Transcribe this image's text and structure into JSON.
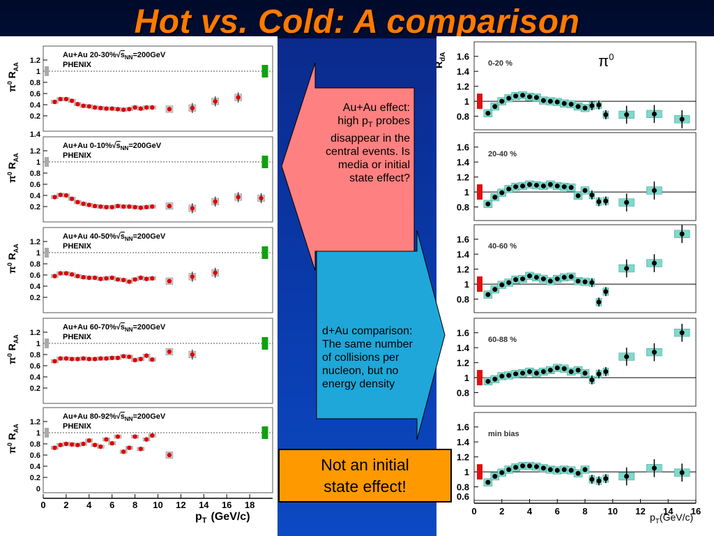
{
  "slide_title": "Hot vs. Cold: A comparison",
  "left": {
    "ylabel_a": "π",
    "ylabel_b": "0",
    "ylabel_c": "R",
    "ylabel_d": "AA",
    "xlabel_a": "p",
    "xlabel_b": "T",
    "xlabel_c": "(GeV/c)",
    "x_ticks": [
      "0",
      "2",
      "4",
      "6",
      "8",
      "10",
      "12",
      "14",
      "16",
      "18"
    ],
    "y_ticks": [
      "1.2",
      "1",
      "0.8",
      "0.6",
      "0.4",
      "0.2"
    ],
    "y_tick_top": "1.4",
    "y_tick_zero": "0",
    "experiment": "PHENIX",
    "legend_prefix": "Au+Au",
    "energy_sqrt": "s",
    "energy_sub": "NN",
    "energy_value": "=200GeV",
    "panels": [
      {
        "centrality": "20-30%"
      },
      {
        "centrality": "0-10%"
      },
      {
        "centrality": "40-50%"
      },
      {
        "centrality": "60-70%"
      },
      {
        "centrality": "80-92%"
      }
    ]
  },
  "right": {
    "ylabel_a": "R",
    "ylabel_b": "dA",
    "xlabel_a": "p",
    "xlabel_b": "T",
    "xlabel_c": "(GeV/c)",
    "x_ticks": [
      "0",
      "2",
      "4",
      "6",
      "8",
      "10",
      "12",
      "14",
      "16"
    ],
    "y_ticks": [
      "1.6",
      "1.4",
      "1.2",
      "1",
      "0.8"
    ],
    "y_tick_bottom": "0.6",
    "particle": "π",
    "particle_sup": "0",
    "panels": [
      {
        "centrality": "0-20 %"
      },
      {
        "centrality": "20-40 %"
      },
      {
        "centrality": "40-60 %"
      },
      {
        "centrality": "60-88 %"
      },
      {
        "centrality": "min bias"
      }
    ]
  },
  "red_callout": {
    "line1": "Au+Au effect:",
    "line2a": "high p",
    "line2sub": "T",
    "line2b": " probes",
    "line3": "disappear in the",
    "line4": "central events. Is",
    "line5": "media or initial",
    "line6": "state effect?"
  },
  "blue_callout": {
    "line1": "d+Au comparison:",
    "line2": "The same number",
    "line3": "of collisions per",
    "line4": "nucleon, but no",
    "line5": "energy density"
  },
  "answer": {
    "line1": "Not an initial",
    "line2": "state effect!"
  },
  "colors": {
    "title": "#ff7a00",
    "red_callout": "#ff7f7f",
    "blue_callout": "#1ea7d8",
    "answer_box": "#ff9900",
    "auau_marker": "#e00000",
    "dau_marker": "#000000",
    "norm_box_auau": "#10a010",
    "norm_box_dau": "#e01010",
    "dau_band": "#7fd9cc"
  },
  "chart_data": [
    {
      "type": "scatter",
      "label": "Au+Au 20-30%",
      "x": [
        1,
        1.5,
        2,
        2.5,
        3,
        3.5,
        4,
        4.5,
        5,
        5.5,
        6,
        6.5,
        7,
        7.5,
        8,
        8.5,
        9,
        9.5,
        11,
        13,
        15,
        17
      ],
      "y": [
        0.45,
        0.5,
        0.5,
        0.47,
        0.41,
        0.38,
        0.37,
        0.35,
        0.34,
        0.33,
        0.33,
        0.32,
        0.31,
        0.32,
        0.35,
        0.33,
        0.35,
        0.35,
        0.32,
        0.34,
        0.46,
        0.53
      ]
    },
    {
      "type": "scatter",
      "label": "Au+Au 0-10%",
      "x": [
        1,
        1.5,
        2,
        2.5,
        3,
        3.5,
        4,
        4.5,
        5,
        5.5,
        6,
        6.5,
        7,
        7.5,
        8,
        8.5,
        9,
        9.5,
        11,
        13,
        15,
        17,
        19
      ],
      "y": [
        0.37,
        0.41,
        0.4,
        0.34,
        0.28,
        0.25,
        0.23,
        0.21,
        0.2,
        0.19,
        0.19,
        0.21,
        0.2,
        0.2,
        0.19,
        0.18,
        0.19,
        0.2,
        0.21,
        0.17,
        0.29,
        0.37,
        0.35
      ]
    },
    {
      "type": "scatter",
      "label": "Au+Au 40-50%",
      "x": [
        1,
        1.5,
        2,
        2.5,
        3,
        3.5,
        4,
        4.5,
        5,
        5.5,
        6,
        6.5,
        7,
        7.5,
        8,
        8.5,
        9,
        9.5,
        11,
        13,
        15
      ],
      "y": [
        0.58,
        0.63,
        0.63,
        0.61,
        0.58,
        0.56,
        0.55,
        0.55,
        0.53,
        0.54,
        0.55,
        0.52,
        0.51,
        0.48,
        0.52,
        0.55,
        0.53,
        0.54,
        0.49,
        0.57,
        0.64
      ]
    },
    {
      "type": "scatter",
      "label": "Au+Au 60-70%",
      "x": [
        1,
        1.5,
        2,
        2.5,
        3,
        3.5,
        4,
        4.5,
        5,
        5.5,
        6,
        6.5,
        7,
        7.5,
        8,
        8.5,
        9,
        9.5,
        11,
        13
      ],
      "y": [
        0.68,
        0.73,
        0.73,
        0.72,
        0.72,
        0.73,
        0.72,
        0.72,
        0.73,
        0.73,
        0.74,
        0.74,
        0.77,
        0.76,
        0.7,
        0.72,
        0.78,
        0.71,
        0.85,
        0.8
      ]
    },
    {
      "type": "scatter",
      "label": "Au+Au 80-92%",
      "x": [
        1,
        1.5,
        2,
        2.5,
        3,
        3.5,
        4,
        4.5,
        5,
        5.5,
        6,
        6.5,
        7,
        7.5,
        8,
        8.5,
        9,
        9.5,
        11
      ],
      "y": [
        0.73,
        0.78,
        0.8,
        0.79,
        0.78,
        0.8,
        0.86,
        0.78,
        0.75,
        0.88,
        0.81,
        0.93,
        0.66,
        0.73,
        0.93,
        0.71,
        0.88,
        0.95,
        0.6
      ]
    },
    {
      "type": "scatter",
      "label": "d+Au 0-20 %",
      "x": [
        1,
        1.5,
        2,
        2.5,
        3,
        3.5,
        4,
        4.5,
        5,
        5.5,
        6,
        6.5,
        7,
        7.5,
        8,
        8.5,
        9,
        9.5,
        11,
        13,
        15
      ],
      "y": [
        0.84,
        0.93,
        1.0,
        1.04,
        1.07,
        1.08,
        1.06,
        1.05,
        1.01,
        1.0,
        0.99,
        0.97,
        0.96,
        0.93,
        0.91,
        0.94,
        0.95,
        0.82,
        0.82,
        0.83,
        0.76
      ]
    },
    {
      "type": "scatter",
      "label": "d+Au 20-40 %",
      "x": [
        1,
        1.5,
        2,
        2.5,
        3,
        3.5,
        4,
        4.5,
        5,
        5.5,
        6,
        6.5,
        7,
        7.5,
        8,
        8.5,
        9,
        9.5,
        11,
        13
      ],
      "y": [
        0.84,
        0.93,
        0.99,
        1.04,
        1.07,
        1.08,
        1.1,
        1.09,
        1.08,
        1.1,
        1.08,
        1.07,
        1.06,
        0.95,
        1.02,
        0.96,
        0.87,
        0.88,
        0.86,
        1.02
      ]
    },
    {
      "type": "scatter",
      "label": "d+Au 40-60 %",
      "x": [
        1,
        1.5,
        2,
        2.5,
        3,
        3.5,
        4,
        4.5,
        5,
        5.5,
        6,
        6.5,
        7,
        7.5,
        8,
        8.5,
        9,
        9.5,
        11,
        13,
        15
      ],
      "y": [
        0.86,
        0.93,
        0.99,
        1.02,
        1.06,
        1.07,
        1.11,
        1.09,
        1.07,
        1.04,
        1.07,
        1.09,
        1.1,
        1.04,
        1.03,
        1.02,
        0.76,
        0.9,
        1.21,
        1.28,
        1.67
      ]
    },
    {
      "type": "scatter",
      "label": "d+Au 60-88 %",
      "x": [
        1,
        1.5,
        2,
        2.5,
        3,
        3.5,
        4,
        4.5,
        5,
        5.5,
        6,
        6.5,
        7,
        7.5,
        8,
        8.5,
        9,
        9.5,
        11,
        13,
        15
      ],
      "y": [
        0.95,
        0.98,
        1.02,
        1.03,
        1.05,
        1.06,
        1.08,
        1.06,
        1.08,
        1.1,
        1.13,
        1.12,
        1.08,
        1.1,
        1.06,
        0.97,
        1.05,
        1.08,
        1.28,
        1.34,
        1.6
      ]
    },
    {
      "type": "scatter",
      "label": "d+Au min bias",
      "x": [
        1,
        1.5,
        2,
        2.5,
        3,
        3.5,
        4,
        4.5,
        5,
        5.5,
        6,
        6.5,
        7,
        7.5,
        8,
        8.5,
        9,
        9.5,
        11,
        13,
        15
      ],
      "y": [
        0.86,
        0.94,
        0.99,
        1.03,
        1.06,
        1.08,
        1.08,
        1.07,
        1.05,
        1.03,
        1.02,
        1.03,
        1.02,
        0.98,
        1.03,
        0.9,
        0.88,
        0.91,
        0.94,
        1.05,
        0.99
      ]
    }
  ]
}
